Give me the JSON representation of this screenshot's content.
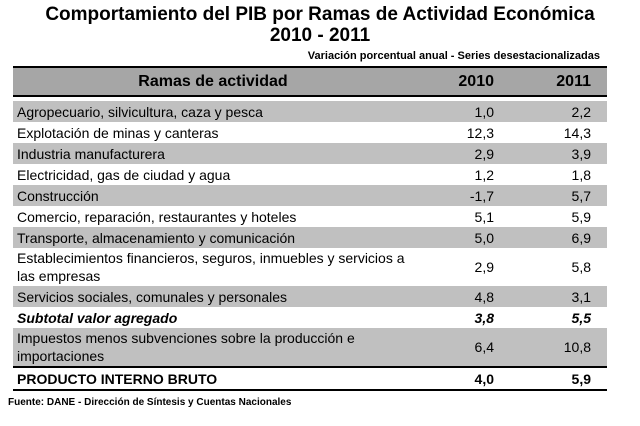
{
  "title_line1": "Comportamiento del PIB por Ramas de Actividad Económica",
  "title_line2": "2010 - 2011",
  "subtitle": "Variación porcentual anual - Series desestacionalizadas",
  "header": {
    "rama": "Ramas de actividad",
    "y2010": "2010",
    "y2011": "2011"
  },
  "rows": [
    {
      "label": "Agropecuario, silvicultura, caza y pesca",
      "v2010": "1,0",
      "v2011": "2,2"
    },
    {
      "label": "Explotación de minas y canteras",
      "v2010": "12,3",
      "v2011": "14,3"
    },
    {
      "label": "Industria manufacturera",
      "v2010": "2,9",
      "v2011": "3,9"
    },
    {
      "label": "Electricidad, gas de ciudad y agua",
      "v2010": "1,2",
      "v2011": "1,8"
    },
    {
      "label": "Construcción",
      "v2010": "-1,7",
      "v2011": "5,7"
    },
    {
      "label": "Comercio, reparación, restaurantes y hoteles",
      "v2010": "5,1",
      "v2011": "5,9"
    },
    {
      "label": "Transporte, almacenamiento y comunicación",
      "v2010": "5,0",
      "v2011": "6,9"
    },
    {
      "label": "Establecimientos financieros, seguros, inmuebles y servicios a las empresas",
      "v2010": "2,9",
      "v2011": "5,8"
    },
    {
      "label": "Servicios sociales, comunales y personales",
      "v2010": "4,8",
      "v2011": "3,1"
    },
    {
      "label": "Subtotal valor agregado",
      "v2010": "3,8",
      "v2011": "5,5"
    },
    {
      "label": "Impuestos menos subvenciones sobre la producción e importaciones",
      "v2010": "6,4",
      "v2011": "10,8"
    },
    {
      "label": "PRODUCTO INTERNO BRUTO",
      "v2010": "4,0",
      "v2011": "5,9"
    }
  ],
  "footer": "Fuente: DANE - Dirección de Síntesis y Cuentas Nacionales"
}
